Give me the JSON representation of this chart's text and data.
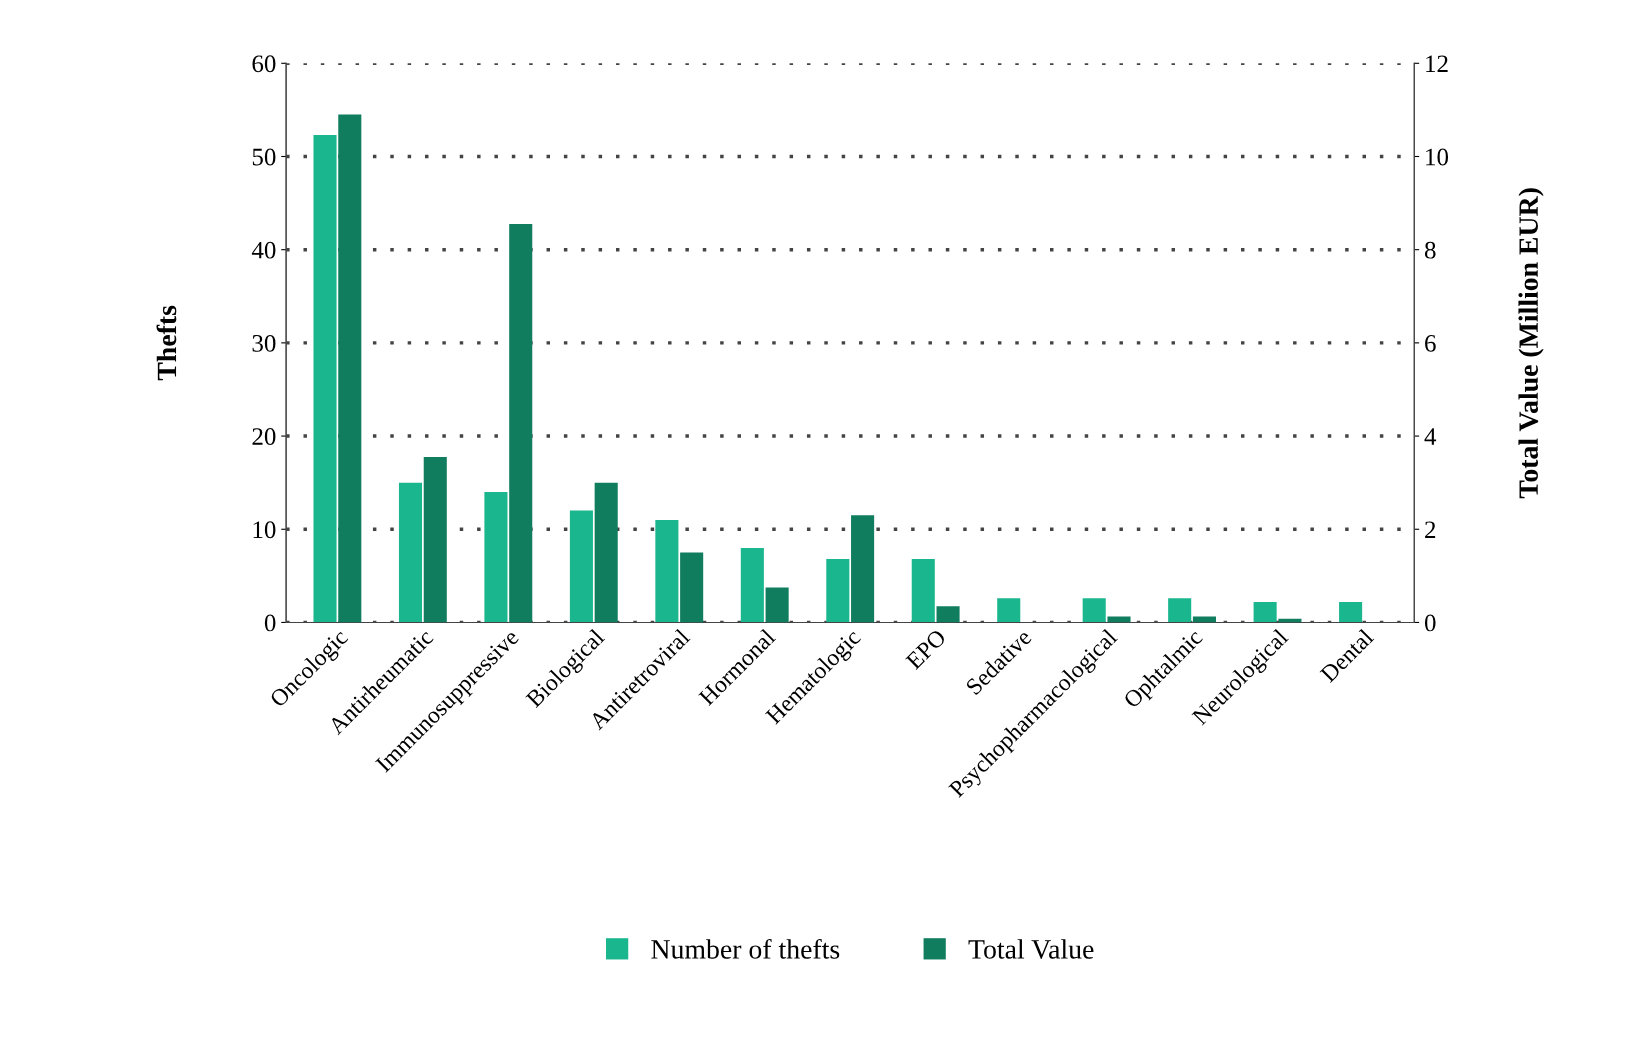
{
  "chart_data": {
    "type": "bar",
    "categories": [
      "Oncologic",
      "Antirheumatic",
      "Immunosuppressive",
      "Biological",
      "Antiretroviral",
      "Hormonal",
      "Hematologic",
      "EPO",
      "Sedative",
      "Psychopharmacological",
      "Ophtalmic",
      "Neurological",
      "Dental"
    ],
    "series": [
      {
        "name": "Number of thefts",
        "color": "#1ab68e",
        "values": [
          52.3,
          15,
          14,
          12,
          11,
          8,
          6.8,
          6.8,
          2.6,
          2.6,
          2.6,
          2.2,
          2.2
        ]
      },
      {
        "name": "Total Value",
        "color": "#0f7d5e",
        "axis": "y2",
        "values": [
          10.9,
          3.55,
          8.55,
          3.0,
          1.5,
          0.75,
          2.3,
          0.35,
          null,
          0.13,
          0.13,
          0.08,
          null
        ]
      }
    ],
    "ylabel": "Thefts",
    "y2label": "Total Value (Million EUR)",
    "ylim": [
      0,
      60
    ],
    "yticks": [
      0,
      10,
      20,
      30,
      40,
      50,
      60
    ],
    "y2lim": [
      0,
      12
    ],
    "y2ticks": [
      0,
      2,
      4,
      6,
      8,
      10,
      12
    ],
    "grid": "y",
    "legend": "bottom"
  }
}
